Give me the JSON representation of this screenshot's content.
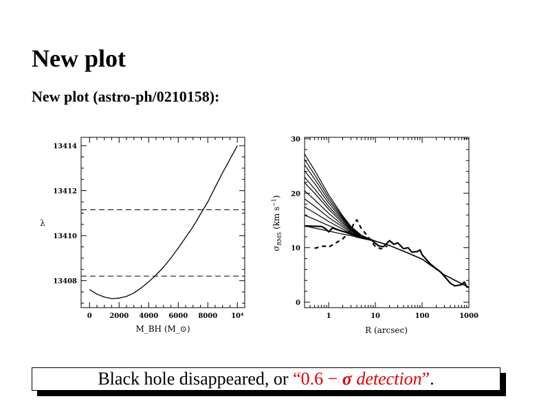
{
  "slide": {
    "title": "New plot",
    "subtitle": "New plot (astro-ph/0210158):"
  },
  "banner": {
    "text_black": "Black hole disappeared, or ",
    "quote_open": "“",
    "red_number": "0.6 − ",
    "red_sigma": "σ",
    "red_italic": " detection",
    "quote_close": "”",
    "end": ".",
    "highlight_color": "#e00000"
  },
  "chart_data": [
    {
      "type": "line",
      "xlabel": "M_BH (M_⊙)",
      "xlabel_main": "M",
      "xlabel_sub": "BH",
      "xlabel_unit_open": " (M",
      "xlabel_unit_sub": "⊙",
      "xlabel_unit_close": ")",
      "ylabel": "λ",
      "xlim": [
        -570,
        10500
      ],
      "ylim": [
        13406.8,
        13414.37
      ],
      "x_ticks": [
        0,
        2000,
        4000,
        6000,
        8000,
        10000
      ],
      "x_tick_labels": [
        "0",
        "2000",
        "4000",
        "6000",
        "8000",
        "10⁴"
      ],
      "y_ticks": [
        13408,
        13410,
        13412,
        13414
      ],
      "y_tick_labels": [
        "13408",
        "13410",
        "13412",
        "13414"
      ],
      "grid": false,
      "series": [
        {
          "style": "solid",
          "x": [
            0,
            500,
            1000,
            1500,
            2000,
            2500,
            3000,
            3500,
            4000,
            4500,
            5000,
            5500,
            6000,
            6500,
            7000,
            7500,
            8000,
            8500,
            9000,
            9500,
            10000
          ],
          "y": [
            13407.6,
            13407.4,
            13407.27,
            13407.2,
            13407.22,
            13407.3,
            13407.45,
            13407.68,
            13407.95,
            13408.25,
            13408.6,
            13409.0,
            13409.45,
            13409.92,
            13410.4,
            13410.95,
            13411.5,
            13412.15,
            13412.8,
            13413.4,
            13414.0
          ]
        }
      ],
      "hlines": [
        {
          "style": "dashed",
          "y": 13411.15
        },
        {
          "style": "dashed",
          "y": 13408.2
        }
      ]
    },
    {
      "type": "line",
      "xlabel": "R (arcsec)",
      "ylabel": "σ_RMS (km s⁻¹)",
      "ylabel_main": "σ",
      "ylabel_sub": "RMS",
      "ylabel_unit": " (km s",
      "ylabel_sup": "−1",
      "ylabel_close": ")",
      "x_scale": "log",
      "xlim": [
        0.305,
        1000
      ],
      "ylim": [
        -1,
        30.25
      ],
      "x_ticks": [
        1,
        10,
        100,
        1000
      ],
      "x_tick_labels": [
        "1",
        "10",
        "100",
        "1000"
      ],
      "y_ticks": [
        0,
        10,
        20,
        30
      ],
      "y_tick_labels": [
        "0",
        "10",
        "20",
        "30"
      ],
      "grid": false,
      "model_x": [
        0.3,
        0.5,
        1,
        2,
        3,
        5,
        10,
        20,
        50,
        100,
        300,
        1000
      ],
      "models": [
        [
          14.0,
          13.6,
          13.05,
          12.5,
          12.2,
          11.7,
          11.2,
          10.4,
          9.0,
          7.9,
          5.0,
          2.7
        ],
        [
          16.0,
          15.2,
          14.05,
          13.0,
          12.4,
          11.8,
          11.2,
          10.4,
          9.0,
          7.9,
          5.0,
          2.7
        ],
        [
          17.5,
          16.4,
          14.8,
          13.4,
          12.6,
          11.9,
          11.2,
          10.4,
          9.0,
          7.9,
          5.0,
          2.7
        ],
        [
          19.0,
          17.6,
          15.55,
          13.8,
          12.8,
          11.9,
          11.2,
          10.4,
          9.0,
          7.9,
          5.0,
          2.7
        ],
        [
          20.5,
          18.8,
          16.3,
          14.15,
          13.0,
          12.0,
          11.2,
          10.4,
          9.0,
          7.9,
          5.0,
          2.7
        ],
        [
          22.0,
          20.0,
          17.05,
          14.5,
          13.2,
          12.0,
          11.2,
          10.4,
          9.0,
          7.9,
          5.0,
          2.7
        ],
        [
          23.0,
          20.8,
          17.55,
          14.8,
          13.3,
          12.1,
          11.2,
          10.4,
          9.0,
          7.9,
          5.0,
          2.7
        ],
        [
          24.2,
          21.8,
          18.15,
          15.1,
          13.5,
          12.1,
          11.2,
          10.4,
          9.0,
          7.9,
          5.0,
          2.7
        ],
        [
          25.3,
          22.6,
          18.7,
          15.35,
          13.6,
          12.2,
          11.2,
          10.4,
          9.0,
          7.9,
          5.0,
          2.7
        ],
        [
          26.3,
          23.4,
          19.2,
          15.6,
          13.8,
          12.2,
          11.2,
          10.4,
          9.0,
          7.9,
          5.0,
          2.7
        ],
        [
          27.3,
          24.2,
          19.7,
          15.85,
          13.9,
          12.3,
          11.2,
          10.4,
          9.0,
          7.9,
          5.0,
          2.7
        ]
      ],
      "data_solid": {
        "x": [
          0.3,
          0.7,
          0.85,
          1,
          1.2,
          2,
          3,
          5,
          8,
          10,
          12,
          15,
          20,
          25,
          30,
          40,
          50,
          60,
          80,
          90,
          100,
          150,
          250,
          400,
          500,
          700,
          800,
          900,
          1000
        ],
        "y": [
          14,
          13.9,
          13.5,
          12.9,
          13.6,
          13,
          12.6,
          12,
          11.5,
          10.8,
          10.3,
          10.2,
          11.3,
          10.6,
          10.9,
          9.8,
          10,
          9.2,
          9.3,
          9.6,
          8.7,
          7,
          5.5,
          3.5,
          3.0,
          3.2,
          3.7,
          2.8,
          2.7
        ]
      },
      "data_dashed": {
        "x": [
          0.5,
          0.8,
          1,
          1.5,
          2,
          2.5,
          3,
          3.5,
          4,
          5,
          7,
          10,
          13,
          18
        ],
        "y": [
          9.9,
          10.3,
          10.1,
          11,
          11.6,
          12.5,
          13.3,
          14.5,
          15.1,
          13.5,
          12,
          10.2,
          9.8,
          10.3
        ]
      }
    }
  ]
}
